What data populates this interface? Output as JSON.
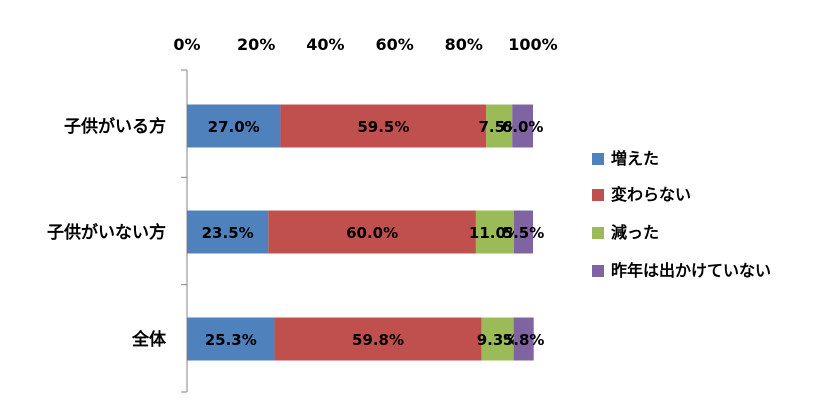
{
  "chart_data": {
    "type": "bar",
    "orientation": "horizontal",
    "stacked": "percent",
    "title": "",
    "xlabel": "",
    "ylabel": "",
    "xlim": [
      0,
      100
    ],
    "x_ticks": [
      "0%",
      "20%",
      "40%",
      "60%",
      "80%",
      "100%"
    ],
    "x_axis_position": "top",
    "grid": false,
    "legend_position": "right",
    "categories": [
      "子供がいる方",
      "子供がいない方",
      "全体"
    ],
    "series": [
      {
        "name": "増えた",
        "color": "#4F81BD",
        "values": [
          27.0,
          23.5,
          25.3
        ],
        "labels": [
          "27.0%",
          "23.5%",
          "25.3%"
        ]
      },
      {
        "name": "変わらない",
        "color": "#C0504D",
        "values": [
          59.5,
          60.0,
          59.8
        ],
        "labels": [
          "59.5%",
          "60.0%",
          "59.8%"
        ]
      },
      {
        "name": "減った",
        "color": "#9BBB59",
        "values": [
          7.5,
          11.0,
          9.3
        ],
        "labels": [
          "7.5%",
          "11.0%",
          "9.3%"
        ]
      },
      {
        "name": "昨年は出かけていない",
        "color": "#8064A2",
        "values": [
          6.0,
          5.5,
          5.8
        ],
        "labels": [
          "6.0%",
          "5.5%",
          "5.8%"
        ]
      }
    ]
  }
}
